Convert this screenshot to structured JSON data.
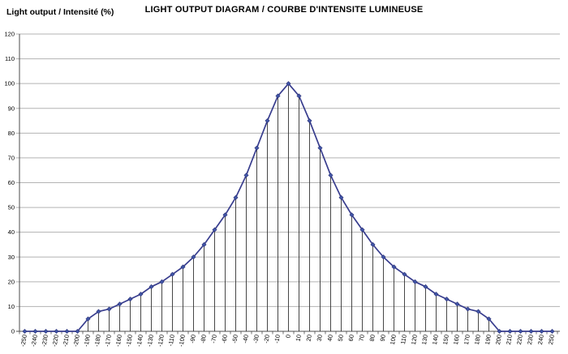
{
  "chart_data": {
    "type": "line",
    "title": "LIGHT OUTPUT DIAGRAM / COURBE D'INTENSITE LUMINEUSE",
    "xlabel": "",
    "ylabel": "Light output / Intensité (%)",
    "x": [
      -250,
      -240,
      -230,
      -220,
      -210,
      -200,
      -190,
      -180,
      -170,
      -160,
      -150,
      -140,
      -130,
      -120,
      -110,
      -100,
      -90,
      -80,
      -70,
      -60,
      -50,
      -40,
      -30,
      -20,
      -10,
      0,
      10,
      20,
      30,
      40,
      50,
      60,
      70,
      80,
      90,
      100,
      110,
      120,
      130,
      140,
      150,
      160,
      170,
      180,
      190,
      200,
      210,
      220,
      230,
      240,
      250
    ],
    "values": [
      0,
      0,
      0,
      0,
      0,
      0,
      5,
      8,
      9,
      11,
      13,
      15,
      18,
      20,
      23,
      26,
      30,
      35,
      41,
      47,
      54,
      63,
      74,
      85,
      95,
      100,
      95,
      85,
      74,
      63,
      54,
      47,
      41,
      35,
      30,
      26,
      23,
      20,
      18,
      15,
      13,
      11,
      9,
      8,
      5,
      0,
      0,
      0,
      0,
      0,
      0
    ],
    "ylim": [
      0,
      120
    ],
    "yticks": [
      0,
      10,
      20,
      30,
      40,
      50,
      60,
      70,
      80,
      90,
      100,
      110,
      120
    ],
    "grid": "horizontal",
    "legend": "none",
    "marker": "diamond",
    "drop_lines": true
  },
  "colors": {
    "line": "#383d8e",
    "marker_fill": "#4156a8",
    "marker_stroke": "#2b3177",
    "grid": "#b3b3b3",
    "axis": "#4d4d4d",
    "drop_line": "#333333",
    "text": "#000000"
  }
}
